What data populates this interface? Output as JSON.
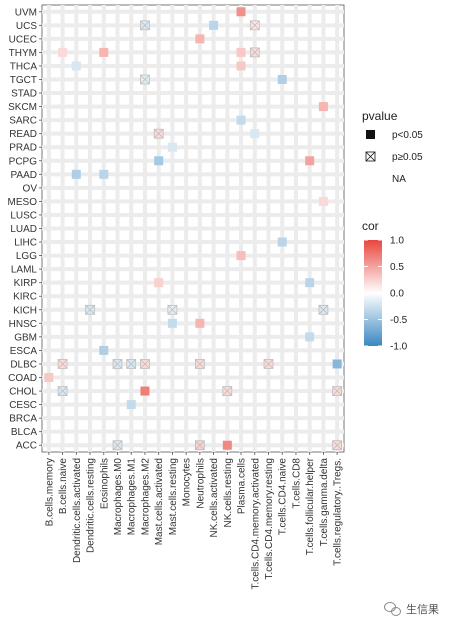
{
  "chart_data": {
    "type": "heatmap",
    "title": "",
    "xlabel": "",
    "ylabel": "",
    "grid": true,
    "rows": [
      "UVM",
      "UCS",
      "UCEC",
      "THYM",
      "THCA",
      "TGCT",
      "STAD",
      "SKCM",
      "SARC",
      "READ",
      "PRAD",
      "PCPG",
      "PAAD",
      "OV",
      "MESO",
      "LUSC",
      "LUAD",
      "LIHC",
      "LGG",
      "LAML",
      "KIRP",
      "KIRC",
      "KICH",
      "HNSC",
      "GBM",
      "ESCA",
      "DLBC",
      "COAD",
      "CHOL",
      "CESC",
      "BRCA",
      "BLCA",
      "ACC"
    ],
    "columns": [
      "B.cells.memory",
      "B.cells.naive",
      "Dendritic.cells.activated",
      "Dendritic.cells.resting",
      "Eosinophils",
      "Macrophages.M0",
      "Macrophages.M1",
      "Macrophages.M2",
      "Mast.cells.activated",
      "Mast.cells.resting",
      "Monocytes",
      "Neutrophils",
      "NK.cells.activated",
      "NK.cells.resting",
      "Plasma.cells",
      "T.cells.CD4.memory.activated",
      "T.cells.CD4.memory.resting",
      "T.cells.CD4.naive",
      "T.cells.CD8",
      "T.cells.follicular.helper",
      "T.cells.gamma.delta",
      "T.cells.regulatory..Tregs."
    ],
    "highlights": [
      {
        "row": "UVM",
        "col": "Plasma.cells",
        "cor": 0.6,
        "sig": true
      },
      {
        "row": "UCS",
        "col": "Macrophages.M2",
        "cor": -0.2,
        "sig": false
      },
      {
        "row": "UCS",
        "col": "NK.cells.activated",
        "cor": -0.35,
        "sig": true
      },
      {
        "row": "UCS",
        "col": "T.cells.CD4.memory.activated",
        "cor": 0.15,
        "sig": false
      },
      {
        "row": "UCEC",
        "col": "Neutrophils",
        "cor": 0.4,
        "sig": true
      },
      {
        "row": "THYM",
        "col": "B.cells.naive",
        "cor": 0.2,
        "sig": true
      },
      {
        "row": "THYM",
        "col": "Eosinophils",
        "cor": 0.4,
        "sig": true
      },
      {
        "row": "THYM",
        "col": "Plasma.cells",
        "cor": 0.3,
        "sig": true
      },
      {
        "row": "THYM",
        "col": "T.cells.CD4.memory.activated",
        "cor": 0.2,
        "sig": false
      },
      {
        "row": "THCA",
        "col": "Dendritic.cells.activated",
        "cor": -0.2,
        "sig": true
      },
      {
        "row": "THCA",
        "col": "Plasma.cells",
        "cor": 0.3,
        "sig": true
      },
      {
        "row": "TGCT",
        "col": "Macrophages.M2",
        "cor": -0.15,
        "sig": false
      },
      {
        "row": "TGCT",
        "col": "T.cells.CD4.naive",
        "cor": -0.4,
        "sig": true
      },
      {
        "row": "SKCM",
        "col": "T.cells.gamma.delta",
        "cor": 0.4,
        "sig": true
      },
      {
        "row": "SARC",
        "col": "Plasma.cells",
        "cor": -0.3,
        "sig": true
      },
      {
        "row": "READ",
        "col": "Mast.cells.activated",
        "cor": 0.2,
        "sig": false
      },
      {
        "row": "READ",
        "col": "T.cells.CD4.memory.activated",
        "cor": -0.2,
        "sig": true
      },
      {
        "row": "PRAD",
        "col": "Mast.cells.resting",
        "cor": -0.2,
        "sig": true
      },
      {
        "row": "PCPG",
        "col": "Mast.cells.activated",
        "cor": -0.45,
        "sig": true
      },
      {
        "row": "PCPG",
        "col": "T.cells.follicular.helper",
        "cor": 0.5,
        "sig": true
      },
      {
        "row": "PAAD",
        "col": "Dendritic.cells.activated",
        "cor": -0.4,
        "sig": true
      },
      {
        "row": "PAAD",
        "col": "Eosinophils",
        "cor": -0.35,
        "sig": true
      },
      {
        "row": "MESO",
        "col": "T.cells.gamma.delta",
        "cor": 0.2,
        "sig": true
      },
      {
        "row": "LIHC",
        "col": "T.cells.CD4.naive",
        "cor": -0.35,
        "sig": true
      },
      {
        "row": "LGG",
        "col": "Plasma.cells",
        "cor": 0.35,
        "sig": true
      },
      {
        "row": "KIRP",
        "col": "T.cells.follicular.helper",
        "cor": -0.35,
        "sig": true
      },
      {
        "row": "KIRP",
        "col": "Mast.cells.activated",
        "cor": 0.25,
        "sig": true
      },
      {
        "row": "KICH",
        "col": "Dendritic.cells.resting",
        "cor": -0.2,
        "sig": false
      },
      {
        "row": "KICH",
        "col": "Mast.cells.resting",
        "cor": -0.15,
        "sig": false
      },
      {
        "row": "KICH",
        "col": "T.cells.gamma.delta",
        "cor": -0.2,
        "sig": false
      },
      {
        "row": "HNSC",
        "col": "Mast.cells.resting",
        "cor": -0.3,
        "sig": true
      },
      {
        "row": "HNSC",
        "col": "Neutrophils",
        "cor": 0.4,
        "sig": true
      },
      {
        "row": "GBM",
        "col": "T.cells.follicular.helper",
        "cor": -0.3,
        "sig": true
      },
      {
        "row": "ESCA",
        "col": "Eosinophils",
        "cor": -0.4,
        "sig": true
      },
      {
        "row": "DLBC",
        "col": "B.cells.naive",
        "cor": 0.2,
        "sig": false
      },
      {
        "row": "DLBC",
        "col": "Macrophages.M0",
        "cor": -0.2,
        "sig": false
      },
      {
        "row": "DLBC",
        "col": "Macrophages.M1",
        "cor": -0.2,
        "sig": false
      },
      {
        "row": "DLBC",
        "col": "Macrophages.M2",
        "cor": 0.2,
        "sig": false
      },
      {
        "row": "DLBC",
        "col": "Neutrophils",
        "cor": 0.2,
        "sig": false
      },
      {
        "row": "DLBC",
        "col": "T.cells.CD4.memory.resting",
        "cor": 0.2,
        "sig": false
      },
      {
        "row": "DLBC",
        "col": "T.cells.regulatory..Tregs.",
        "cor": -0.6,
        "sig": true
      },
      {
        "row": "COAD",
        "col": "B.cells.memory",
        "cor": 0.3,
        "sig": true
      },
      {
        "row": "CHOL",
        "col": "B.cells.naive",
        "cor": -0.2,
        "sig": false
      },
      {
        "row": "CHOL",
        "col": "Macrophages.M2",
        "cor": 0.7,
        "sig": true
      },
      {
        "row": "CHOL",
        "col": "NK.cells.resting",
        "cor": 0.2,
        "sig": false
      },
      {
        "row": "CHOL",
        "col": "T.cells.regulatory..Tregs.",
        "cor": 0.2,
        "sig": false
      },
      {
        "row": "CESC",
        "col": "Macrophages.M1",
        "cor": -0.3,
        "sig": true
      },
      {
        "row": "ACC",
        "col": "Macrophages.M0",
        "cor": -0.2,
        "sig": false
      },
      {
        "row": "ACC",
        "col": "Neutrophils",
        "cor": 0.25,
        "sig": false
      },
      {
        "row": "ACC",
        "col": "NK.cells.resting",
        "cor": 0.65,
        "sig": true
      },
      {
        "row": "ACC",
        "col": "T.cells.regulatory..Tregs.",
        "cor": 0.2,
        "sig": false
      }
    ],
    "legend": {
      "placement": "right",
      "pvalue": {
        "title": "pvalue",
        "items": [
          {
            "label": "p<0.05",
            "shape": "filled-square"
          },
          {
            "label": "p≥0.05",
            "shape": "crossed-square"
          },
          {
            "label": "NA",
            "shape": "none"
          }
        ]
      },
      "cor": {
        "title": "cor",
        "ticks": [
          1.0,
          0.5,
          0.0,
          -0.5,
          -1.0
        ],
        "tick_labels": [
          "1.0",
          "0.5",
          "0.0",
          "-0.5",
          "-1.0"
        ],
        "colors": {
          "low": "#3a87c0",
          "mid": "#ffffff",
          "high": "#e8463d"
        }
      }
    }
  },
  "watermark": {
    "text": "生信果",
    "icon": "wechat-icon"
  }
}
